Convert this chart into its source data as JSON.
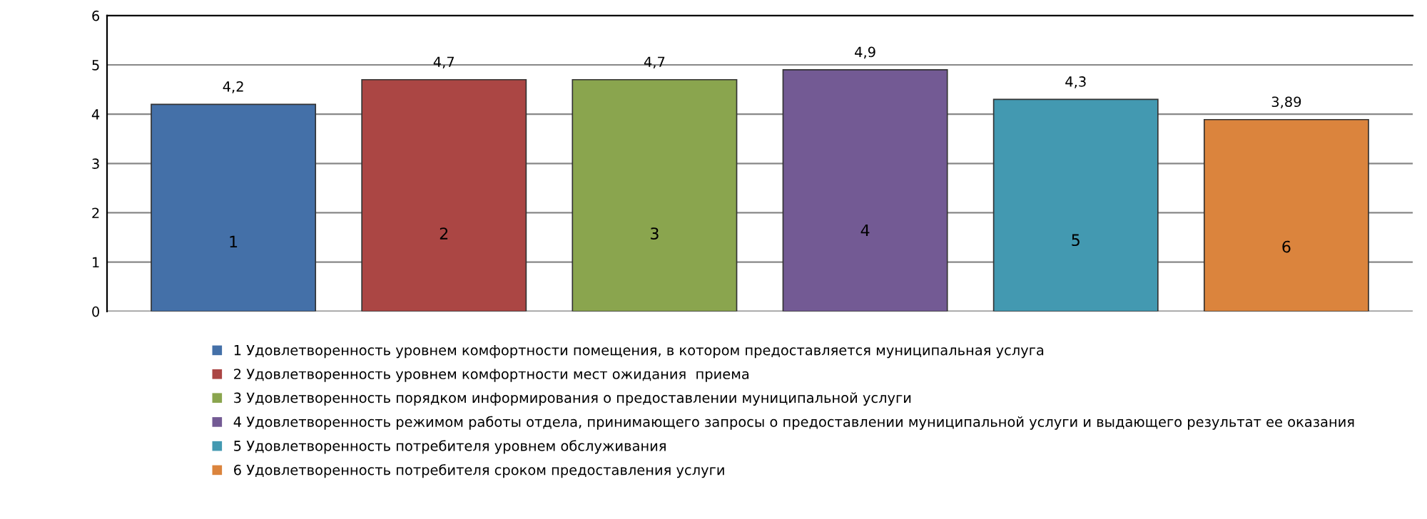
{
  "chart_data": {
    "type": "bar",
    "categories": [
      "1",
      "2",
      "3",
      "4",
      "5",
      "6"
    ],
    "series": [
      {
        "name": "1 Удовлетворенность уровнем комфортности помещения, в котором предоставляется муниципальная услуга",
        "color": "#4470a8",
        "values": [
          4.2,
          null,
          null,
          null,
          null,
          null
        ],
        "value_labels": [
          "4,2",
          null,
          null,
          null,
          null,
          null
        ]
      },
      {
        "name": "2 Удовлетворенность уровнем комфортности мест ожидания  приема",
        "color": "#ab4644",
        "values": [
          null,
          4.7,
          null,
          null,
          null,
          null
        ],
        "value_labels": [
          null,
          "4,7",
          null,
          null,
          null,
          null
        ]
      },
      {
        "name": "3 Удовлетворенность порядком информирования о предоставлении муниципальной услуги",
        "color": "#8aa54e",
        "values": [
          null,
          null,
          4.7,
          null,
          null,
          null
        ],
        "value_labels": [
          null,
          null,
          "4,7",
          null,
          null,
          null
        ]
      },
      {
        "name": "4 Удовлетворенность режимом работы отдела, принимающего запросы о предоставлении муниципальной услуги и выдающего результат ее оказания",
        "color": "#735a94",
        "values": [
          null,
          null,
          null,
          4.9,
          null,
          null
        ],
        "value_labels": [
          null,
          null,
          null,
          "4,9",
          null,
          null
        ]
      },
      {
        "name": "5 Удовлетворенность потребителя уровнем обслуживания",
        "color": "#4399b1",
        "values": [
          null,
          null,
          null,
          null,
          4.3,
          null
        ],
        "value_labels": [
          null,
          null,
          null,
          null,
          "4,3",
          null
        ]
      },
      {
        "name": "6 Удовлетворенность потребителя сроком предоставления услуги",
        "color": "#db843d",
        "values": [
          null,
          null,
          null,
          null,
          null,
          3.89
        ],
        "value_labels": [
          null,
          null,
          null,
          null,
          null,
          "3,89"
        ]
      }
    ],
    "ylim": [
      0,
      6
    ],
    "yticks": [
      0,
      1,
      2,
      3,
      4,
      5,
      6
    ],
    "grid": "y",
    "legend": "bottom"
  }
}
